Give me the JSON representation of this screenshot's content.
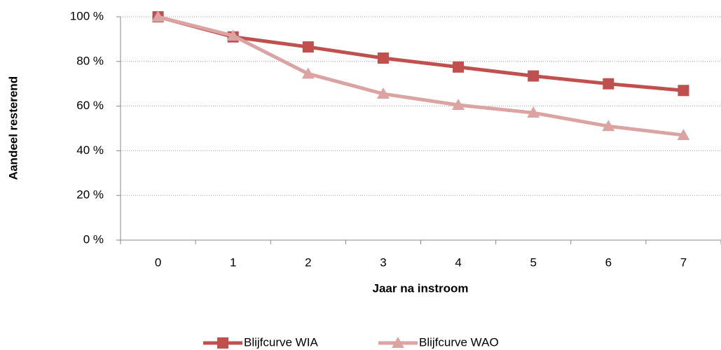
{
  "chart_data": {
    "type": "line",
    "x_label": "Jaar na instroom",
    "y_label": "Aandeel resterend",
    "categories": [
      "0",
      "1",
      "2",
      "3",
      "4",
      "5",
      "6",
      "7"
    ],
    "series": [
      {
        "name": "Blijfcurve WIA",
        "color": "#c0504d",
        "marker": "square",
        "values": [
          100,
          91,
          86.5,
          81.5,
          77.5,
          73.5,
          70,
          67
        ]
      },
      {
        "name": "Blijfcurve WAO",
        "color": "#dba3a1",
        "marker": "triangle",
        "values": [
          100,
          91.5,
          74.5,
          65.5,
          60.5,
          57,
          51,
          47
        ]
      }
    ],
    "ylim": [
      0,
      100
    ],
    "yticks": [
      {
        "value": 0,
        "label": "0 %"
      },
      {
        "value": 20,
        "label": "20 %"
      },
      {
        "value": 40,
        "label": "40 %"
      },
      {
        "value": 60,
        "label": "60 %"
      },
      {
        "value": 80,
        "label": "80 %"
      },
      {
        "value": 100,
        "label": "100 %"
      }
    ],
    "grid": true,
    "legend": "bottom"
  }
}
